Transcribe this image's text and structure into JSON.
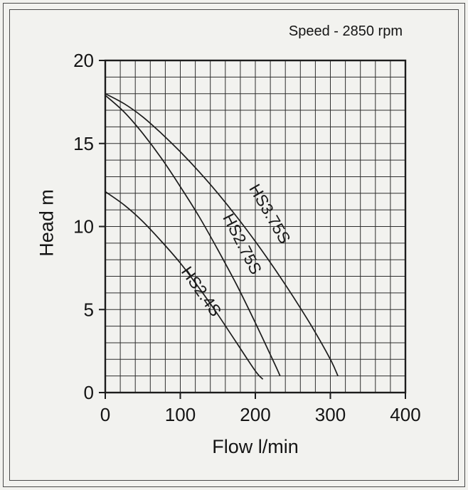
{
  "chart_data": {
    "type": "line",
    "title": "Speed - 2850 rpm",
    "xlabel": "Flow l/min",
    "ylabel": "Head m",
    "xlim": [
      0,
      400
    ],
    "ylim": [
      0,
      20
    ],
    "x_major_ticks": [
      0,
      100,
      200,
      300,
      400
    ],
    "y_major_ticks": [
      0,
      5,
      10,
      15,
      20
    ],
    "x_minor_step": 20,
    "y_minor_step": 1,
    "grid": "minor",
    "colors": {
      "line": "#1c1c1c",
      "grid": "#2e2e2e",
      "background": "#f2f2ef"
    },
    "series": [
      {
        "name": "HS3.75S",
        "points": [
          [
            0,
            18.0
          ],
          [
            25,
            17.4
          ],
          [
            50,
            16.6
          ],
          [
            75,
            15.6
          ],
          [
            100,
            14.5
          ],
          [
            125,
            13.3
          ],
          [
            150,
            12.0
          ],
          [
            175,
            10.6
          ],
          [
            200,
            9.1
          ],
          [
            225,
            7.5
          ],
          [
            250,
            5.8
          ],
          [
            275,
            4.0
          ],
          [
            300,
            2.0
          ],
          [
            310,
            1.0
          ]
        ],
        "label": {
          "x": 213,
          "y": 10.6,
          "rotation": 60
        }
      },
      {
        "name": "HS2.75S",
        "points": [
          [
            0,
            17.9
          ],
          [
            25,
            16.9
          ],
          [
            50,
            15.6
          ],
          [
            75,
            14.1
          ],
          [
            100,
            12.4
          ],
          [
            125,
            10.6
          ],
          [
            150,
            8.6
          ],
          [
            175,
            6.5
          ],
          [
            200,
            4.2
          ],
          [
            225,
            1.8
          ],
          [
            233,
            1.0
          ]
        ],
        "label": {
          "x": 176,
          "y": 8.8,
          "rotation": 63
        }
      },
      {
        "name": "HS2.4S",
        "points": [
          [
            0,
            12.1
          ],
          [
            25,
            11.3
          ],
          [
            50,
            10.3
          ],
          [
            75,
            9.1
          ],
          [
            100,
            7.8
          ],
          [
            125,
            6.3
          ],
          [
            150,
            4.7
          ],
          [
            175,
            3.0
          ],
          [
            200,
            1.3
          ],
          [
            210,
            0.8
          ]
        ],
        "label": {
          "x": 122,
          "y": 5.9,
          "rotation": 55
        }
      }
    ]
  }
}
